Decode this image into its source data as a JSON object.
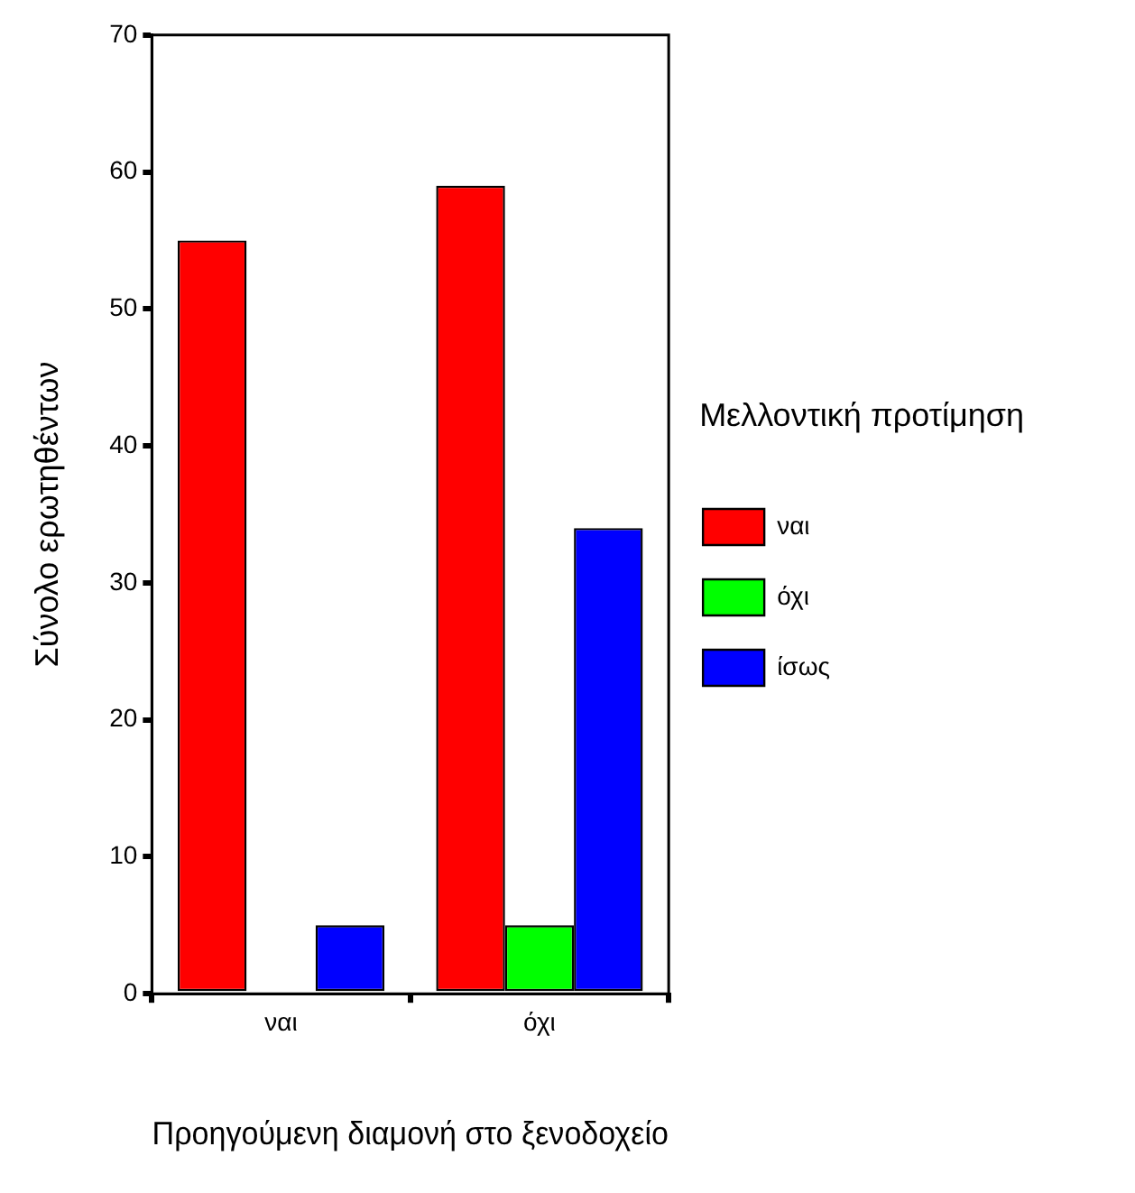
{
  "chart_data": {
    "type": "bar",
    "xlabel": "Προηγούμενη διαμονή στο ξενοδοχείο",
    "ylabel": "Σύνολο ερωτηθέντων",
    "legend_title": "Μελλοντική προτίμηση",
    "categories": [
      "ναι",
      "όχι"
    ],
    "series": [
      {
        "name": "ναι",
        "color": "#ff0000",
        "values": [
          55,
          59
        ]
      },
      {
        "name": "όχι",
        "color": "#00ff00",
        "values": [
          0,
          5
        ]
      },
      {
        "name": "ίσως",
        "color": "#0000ff",
        "values": [
          5,
          34
        ]
      }
    ],
    "ylim": [
      0,
      70
    ],
    "yticks": [
      0,
      10,
      20,
      30,
      40,
      50,
      60,
      70
    ],
    "grid": false,
    "legend": "right"
  }
}
